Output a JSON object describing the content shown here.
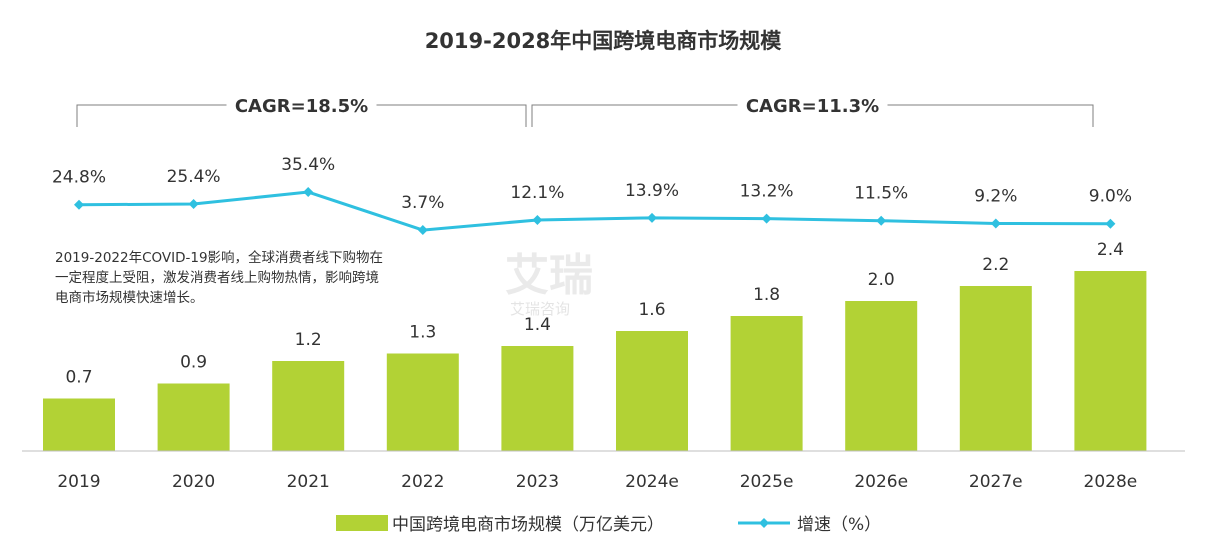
{
  "chart_data": {
    "type": "bar",
    "title": "2019-2028年中国跨境电商市场规模",
    "categories": [
      "2019",
      "2020",
      "2021",
      "2022",
      "2023",
      "2024e",
      "2025e",
      "2026e",
      "2027e",
      "2028e"
    ],
    "series": [
      {
        "name": "中国跨境电商市场规模（万亿美元）",
        "type": "bar",
        "color": "#b2d235",
        "values": [
          0.7,
          0.9,
          1.2,
          1.3,
          1.4,
          1.6,
          1.8,
          2.0,
          2.2,
          2.4
        ],
        "labels": [
          "0.7",
          "0.9",
          "1.2",
          "1.3",
          "1.4",
          "1.6",
          "1.8",
          "2.0",
          "2.2",
          "2.4"
        ]
      },
      {
        "name": "增速（%）",
        "type": "line",
        "color": "#2fc0e0",
        "values": [
          24.8,
          25.4,
          35.4,
          3.7,
          12.1,
          13.9,
          13.2,
          11.5,
          9.2,
          9.0
        ],
        "labels": [
          "24.8%",
          "25.4%",
          "35.4%",
          "3.7%",
          "12.1%",
          "13.9%",
          "13.2%",
          "11.5%",
          "9.2%",
          "9.0%"
        ]
      }
    ],
    "cagr": [
      {
        "label": "CAGR=18.5%",
        "from": "2019",
        "to": "2023"
      },
      {
        "label": "CAGR=11.3%",
        "from": "2023",
        "to": "2028e"
      }
    ],
    "annotation": [
      "2019-2022年COVID-19影响，全球消费者线下购物在",
      "一定程度上受阻，激发消费者线上购物热情，影响跨境",
      "电商市场规模快速增长。"
    ],
    "watermark": [
      "艾瑞",
      "艾瑞咨询"
    ],
    "legend_position": "bottom-center",
    "grid": false
  }
}
